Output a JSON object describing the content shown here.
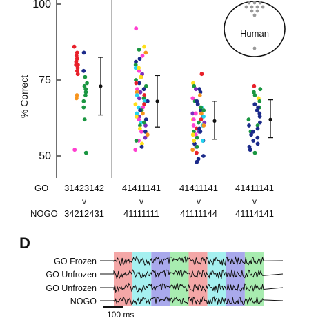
{
  "chart_data": [
    {
      "type": "scatter",
      "title": "",
      "ylabel": "% Correct",
      "ylim": [
        44,
        100
      ],
      "yticks": [
        "100",
        "75",
        "50"
      ],
      "row_labels": {
        "go": "GO",
        "v": "v",
        "nogo": "NOGO"
      },
      "conditions": [
        {
          "go": "31423142",
          "nogo": "34212431",
          "mean": 73,
          "err_low": 63.5,
          "err_high": 82.5
        },
        {
          "go": "41411141",
          "nogo": "41111111",
          "mean": 68,
          "err_low": 59.5,
          "err_high": 76.5
        },
        {
          "go": "41411141",
          "nogo": "41111144",
          "mean": 61.5,
          "err_low": 55.5,
          "err_high": 68
        },
        {
          "go": "41411141",
          "nogo": "41114141",
          "mean": 62,
          "err_low": 56,
          "err_high": 68.5
        }
      ],
      "point_colors": [
        "#e8202a",
        "#f7941d",
        "#ffe01a",
        "#1a9641",
        "#1b2a8a",
        "#7b2fbe",
        "#ff3fd0",
        "#22d3ee"
      ],
      "points": [
        [
          [
            86,
            0
          ],
          [
            84,
            0
          ],
          [
            83,
            0
          ],
          [
            82,
            0
          ],
          [
            81,
            0
          ],
          [
            80,
            0
          ],
          [
            79,
            0
          ],
          [
            78,
            0
          ],
          [
            77,
            0
          ],
          [
            70,
            1
          ],
          [
            69,
            1
          ],
          [
            52,
            6
          ],
          [
            84,
            4
          ],
          [
            76,
            3
          ],
          [
            74,
            3
          ],
          [
            73,
            3
          ],
          [
            72,
            3
          ],
          [
            71,
            3
          ],
          [
            70,
            3
          ],
          [
            68,
            3
          ],
          [
            66,
            3
          ],
          [
            62,
            3
          ],
          [
            51,
            3
          ],
          [
            78,
            4
          ],
          [
            80,
            0
          ]
        ],
        [
          [
            92,
            6
          ],
          [
            86,
            2
          ],
          [
            84,
            1
          ],
          [
            83,
            6
          ],
          [
            81,
            4
          ],
          [
            80,
            3
          ],
          [
            79,
            7
          ],
          [
            78,
            6
          ],
          [
            77,
            5
          ],
          [
            76,
            1
          ],
          [
            76,
            2
          ],
          [
            75,
            3
          ],
          [
            74,
            4
          ],
          [
            74,
            0
          ],
          [
            73,
            3
          ],
          [
            72,
            6
          ],
          [
            72,
            4
          ],
          [
            71,
            1
          ],
          [
            70,
            0
          ],
          [
            70,
            7
          ],
          [
            69,
            3
          ],
          [
            69,
            5
          ],
          [
            68,
            4
          ],
          [
            68,
            7
          ],
          [
            67,
            2
          ],
          [
            66,
            7
          ],
          [
            66,
            6
          ],
          [
            65,
            3
          ],
          [
            64,
            7
          ],
          [
            64,
            1
          ],
          [
            63,
            5
          ],
          [
            62,
            6
          ],
          [
            62,
            4
          ],
          [
            61,
            7
          ],
          [
            60,
            3
          ],
          [
            60,
            5
          ],
          [
            59,
            2
          ],
          [
            58,
            4
          ],
          [
            57,
            1
          ],
          [
            56,
            5
          ],
          [
            55,
            6
          ],
          [
            54,
            2
          ],
          [
            53,
            4
          ],
          [
            52,
            6
          ],
          [
            85,
            3
          ],
          [
            82,
            4
          ],
          [
            79,
            2
          ],
          [
            71,
            5
          ],
          [
            67,
            0
          ],
          [
            65,
            4
          ],
          [
            63,
            2
          ],
          [
            61,
            3
          ],
          [
            58,
            6
          ],
          [
            55,
            3
          ]
        ],
        [
          [
            77,
            0
          ],
          [
            74,
            2
          ],
          [
            73,
            3
          ],
          [
            72,
            4
          ],
          [
            71,
            4
          ],
          [
            70,
            1
          ],
          [
            69,
            6
          ],
          [
            68,
            3
          ],
          [
            67,
            4
          ],
          [
            66,
            7
          ],
          [
            66,
            2
          ],
          [
            65,
            4
          ],
          [
            65,
            3
          ],
          [
            64,
            5
          ],
          [
            64,
            6
          ],
          [
            63,
            4
          ],
          [
            63,
            7
          ],
          [
            62,
            2
          ],
          [
            62,
            0
          ],
          [
            61,
            3
          ],
          [
            61,
            5
          ],
          [
            60,
            7
          ],
          [
            60,
            1
          ],
          [
            60,
            6
          ],
          [
            59,
            0
          ],
          [
            59,
            4
          ],
          [
            58,
            3
          ],
          [
            58,
            5
          ],
          [
            57,
            6
          ],
          [
            57,
            2
          ],
          [
            56,
            3
          ],
          [
            55,
            4
          ],
          [
            55,
            7
          ],
          [
            54,
            4
          ],
          [
            53,
            5
          ],
          [
            52,
            1
          ],
          [
            51,
            0
          ],
          [
            50,
            4
          ],
          [
            49,
            4
          ],
          [
            48,
            4
          ],
          [
            66,
            3
          ],
          [
            64,
            1
          ],
          [
            62,
            6
          ],
          [
            58,
            4
          ],
          [
            55,
            2
          ],
          [
            53,
            3
          ],
          [
            72,
            5
          ],
          [
            68,
            4
          ]
        ],
        [
          [
            73,
            0
          ],
          [
            72,
            3
          ],
          [
            71,
            3
          ],
          [
            70,
            3
          ],
          [
            69,
            2
          ],
          [
            68,
            3
          ],
          [
            67,
            4
          ],
          [
            66,
            3
          ],
          [
            65,
            4
          ],
          [
            64,
            4
          ],
          [
            63,
            4
          ],
          [
            62,
            3
          ],
          [
            61,
            4
          ],
          [
            60,
            3
          ],
          [
            59,
            4
          ],
          [
            58,
            3
          ],
          [
            57,
            4
          ],
          [
            56,
            4
          ],
          [
            55,
            4
          ],
          [
            54,
            4
          ],
          [
            53,
            4
          ],
          [
            52,
            4
          ],
          [
            51,
            3
          ],
          [
            66,
            4
          ],
          [
            60,
            4
          ],
          [
            58,
            4
          ]
        ]
      ],
      "inset": {
        "label": "Human"
      }
    },
    {
      "type": "line",
      "panel_label": "D",
      "series": [
        {
          "name": "GO Frozen",
          "seed": 3
        },
        {
          "name": "GO Unfrozen",
          "seed": 7
        },
        {
          "name": "GO Unfrozen",
          "seed": 11
        },
        {
          "name": "NOGO",
          "seed": 17
        }
      ],
      "segments": [
        {
          "color": "#f4a7a7",
          "bursts": [
            0,
            0,
            0,
            0
          ]
        },
        {
          "color": "#a5f0f0",
          "bursts": [
            0,
            0,
            0,
            0
          ]
        },
        {
          "color": "#a9a9ec",
          "bursts": [
            0,
            0,
            0,
            0
          ]
        },
        {
          "color": "#a8ecb0",
          "bursts": [
            0,
            0,
            0,
            0
          ]
        },
        {
          "color": "#f4a7a7",
          "bursts": [
            0,
            0,
            0,
            0
          ]
        },
        {
          "color": "#a5f0f0",
          "bursts": [
            0,
            0,
            0,
            0
          ]
        },
        {
          "color": "#a9a9ec",
          "bursts": [
            0,
            0,
            0,
            0
          ]
        },
        {
          "color": "#a8ecb0",
          "bursts": [
            0,
            0,
            0,
            0
          ]
        }
      ],
      "scalebar_label": "100 ms"
    }
  ]
}
